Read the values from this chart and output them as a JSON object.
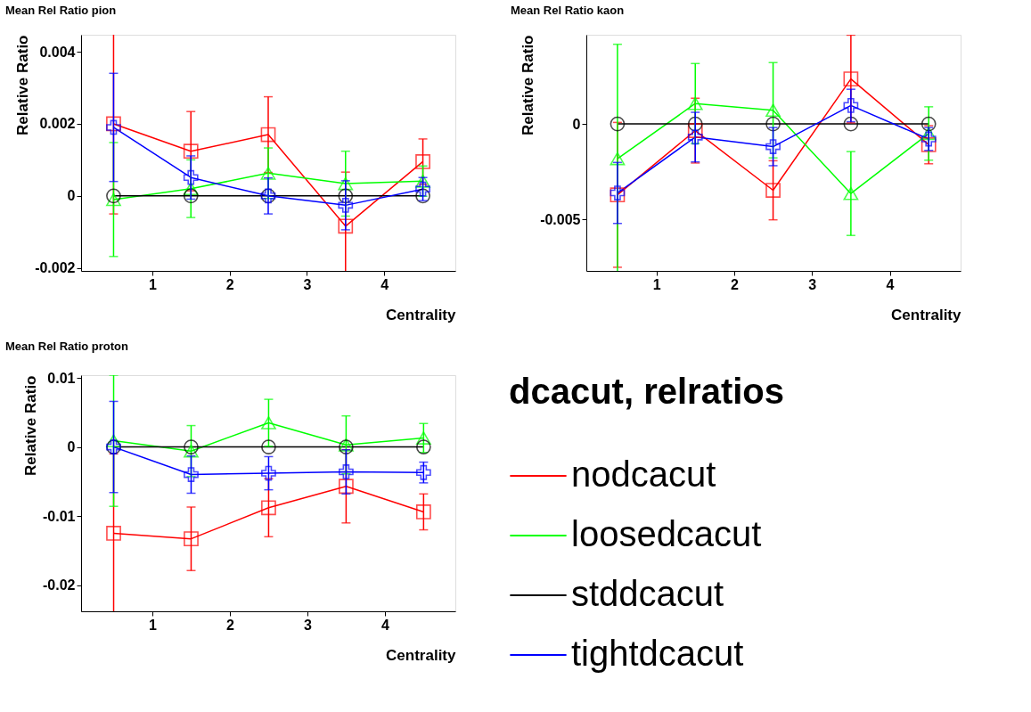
{
  "chart_data": [
    {
      "type": "line",
      "title": "Mean Rel Ratio pion",
      "xlabel": "Centrality",
      "ylabel": "Relative Ratio",
      "x": [
        0.5,
        1.5,
        2.5,
        3.5,
        4.5
      ],
      "xlim": [
        0.08,
        4.92
      ],
      "ylim": [
        -0.00208,
        0.00447
      ],
      "xticks": [
        1,
        2,
        3,
        4
      ],
      "yticks": [
        -0.002,
        0,
        0.002,
        0.004
      ],
      "grid": false,
      "legend": false,
      "line_style": "solid",
      "series": [
        {
          "color": "#ff0000",
          "marker": "square",
          "values": [
            0.002,
            0.00124,
            0.0017,
            -0.00084,
            0.00095
          ],
          "errors": [
            0.0025,
            0.0011,
            0.00105,
            0.0015,
            0.00063
          ]
        },
        {
          "color": "#00ff00",
          "marker": "triangle",
          "values": [
            -0.0001,
            0.0002,
            0.00063,
            0.00034,
            0.00041
          ],
          "errors": [
            0.00158,
            0.0008,
            0.0007,
            0.0009,
            0.00042
          ]
        },
        {
          "color": "#000000",
          "marker": "circle",
          "values": [
            0,
            0,
            0,
            0,
            0
          ]
        },
        {
          "color": "#0000ff",
          "marker": "cross",
          "values": [
            0.0019,
            0.00051,
            0,
            -0.00026,
            0.00019
          ],
          "errors": [
            0.0015,
            0.0006,
            0.0005,
            0.00068,
            0.00032
          ]
        }
      ]
    },
    {
      "type": "line",
      "title": "Mean Rel Ratio kaon",
      "xlabel": "Centrality",
      "ylabel": "Relative Ratio",
      "x": [
        0.5,
        1.5,
        2.5,
        3.5,
        4.5
      ],
      "xlim": [
        0.1,
        4.91
      ],
      "ylim": [
        -0.00771,
        0.00468
      ],
      "xticks": [
        1,
        2,
        3,
        4
      ],
      "yticks": [
        -0.005,
        0
      ],
      "grid": false,
      "legend": false,
      "line_style": "solid",
      "series": [
        {
          "color": "#ff0000",
          "marker": "square",
          "values": [
            -0.00372,
            -0.00035,
            -0.00348,
            0.00236,
            -0.00109
          ],
          "errors": [
            0.0038,
            0.0017,
            0.00155,
            0.0023,
            0.001
          ]
        },
        {
          "color": "#00ff00",
          "marker": "triangle",
          "values": [
            -0.00182,
            0.00107,
            0.00072,
            -0.00365,
            -0.0005
          ],
          "errors": [
            0.006,
            0.0021,
            0.0025,
            0.0022,
            0.0014
          ]
        },
        {
          "color": "#000000",
          "marker": "circle",
          "values": [
            0,
            0,
            0,
            0,
            0
          ]
        },
        {
          "color": "#0000ff",
          "marker": "cross",
          "values": [
            -0.00362,
            -0.00069,
            -0.00119,
            0.00097,
            -0.00079
          ],
          "errors": [
            0.0016,
            0.0013,
            0.001,
            0.00085,
            0.0006
          ]
        }
      ]
    },
    {
      "type": "line",
      "title": "Mean Rel Ratio proton",
      "xlabel": "Centrality",
      "ylabel": "Relative Ratio",
      "x": [
        0.5,
        1.5,
        2.5,
        3.5,
        4.5
      ],
      "xlim": [
        0.08,
        4.91
      ],
      "ylim": [
        -0.0238,
        0.0104
      ],
      "xticks": [
        1,
        2,
        3,
        4
      ],
      "yticks": [
        -0.02,
        -0.01,
        0,
        0.01
      ],
      "grid": false,
      "legend": "right",
      "legend_title": "dcacut, relratios",
      "line_style": "solid",
      "series": [
        {
          "name": "nodcacut",
          "color": "#ff0000",
          "marker": "square",
          "values": [
            -0.0125,
            -0.0133,
            -0.0088,
            -0.0057,
            -0.0094
          ],
          "errors": [
            0.0115,
            0.0046,
            0.0042,
            0.0053,
            0.0026
          ]
        },
        {
          "name": "loosedcacut",
          "color": "#00ff00",
          "marker": "triangle",
          "values": [
            0.0009,
            -0.0006,
            0.0035,
            0.0003,
            0.0013
          ],
          "errors": [
            0.0095,
            0.0037,
            0.0034,
            0.0042,
            0.0021
          ]
        },
        {
          "name": "stddcacut",
          "color": "#000000",
          "marker": "circle",
          "values": [
            0,
            0,
            0,
            0,
            0
          ]
        },
        {
          "name": "tightdcacut",
          "color": "#0000ff",
          "marker": "cross",
          "values": [
            0,
            -0.004,
            -0.0038,
            -0.0036,
            -0.0037
          ],
          "errors": [
            0.0066,
            0.0027,
            0.0024,
            0.0032,
            0.0015
          ]
        }
      ]
    }
  ]
}
